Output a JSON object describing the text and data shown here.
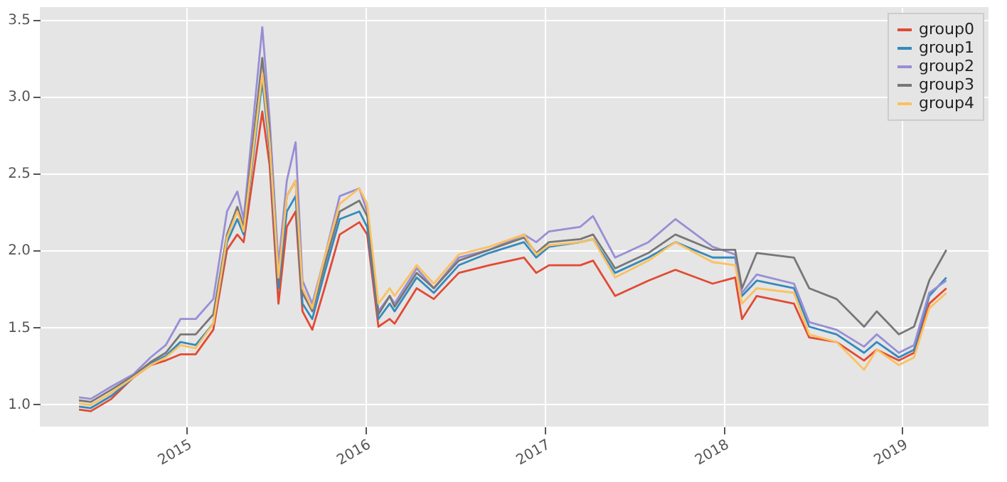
{
  "chart_data": {
    "type": "line",
    "x": [
      "2014-05-27",
      "2014-06-20",
      "2014-08-01",
      "2014-09-15",
      "2014-10-20",
      "2014-11-20",
      "2014-12-20",
      "2015-01-20",
      "2015-02-25",
      "2015-03-25",
      "2015-04-15",
      "2015-04-28",
      "2015-06-05",
      "2015-06-20",
      "2015-07-08",
      "2015-07-25",
      "2015-08-12",
      "2015-08-26",
      "2015-09-15",
      "2015-10-10",
      "2015-11-10",
      "2015-12-20",
      "2016-01-05",
      "2016-01-28",
      "2016-02-20",
      "2016-03-01",
      "2016-04-15",
      "2016-05-20",
      "2016-07-10",
      "2016-09-10",
      "2016-11-20",
      "2016-12-15",
      "2017-01-10",
      "2017-03-15",
      "2017-04-10",
      "2017-05-25",
      "2017-08-01",
      "2017-09-25",
      "2017-12-10",
      "2018-01-25",
      "2018-02-08",
      "2018-03-10",
      "2018-05-25",
      "2018-06-25",
      "2018-08-20",
      "2018-10-15",
      "2018-11-10",
      "2018-12-25",
      "2019-01-25",
      "2019-02-25",
      "2019-04-01"
    ],
    "series": [
      {
        "name": "group0",
        "color": "#e24a33",
        "values": [
          0.96,
          0.95,
          1.03,
          1.17,
          1.25,
          1.28,
          1.32,
          1.32,
          1.48,
          2.0,
          2.1,
          2.05,
          2.9,
          2.55,
          1.65,
          2.15,
          2.25,
          1.6,
          1.48,
          1.75,
          2.1,
          2.18,
          2.1,
          1.5,
          1.55,
          1.52,
          1.75,
          1.68,
          1.85,
          1.9,
          1.95,
          1.85,
          1.9,
          1.9,
          1.93,
          1.7,
          1.8,
          1.87,
          1.78,
          1.82,
          1.55,
          1.7,
          1.65,
          1.43,
          1.4,
          1.28,
          1.35,
          1.28,
          1.33,
          1.65,
          1.75
        ]
      },
      {
        "name": "group1",
        "color": "#348abd",
        "values": [
          0.98,
          0.97,
          1.05,
          1.17,
          1.26,
          1.31,
          1.4,
          1.38,
          1.52,
          2.05,
          2.2,
          2.1,
          3.1,
          2.65,
          1.75,
          2.25,
          2.35,
          1.65,
          1.55,
          1.85,
          2.2,
          2.25,
          2.15,
          1.55,
          1.65,
          1.6,
          1.82,
          1.72,
          1.9,
          1.98,
          2.05,
          1.95,
          2.02,
          2.05,
          2.07,
          1.85,
          1.95,
          2.05,
          1.95,
          1.95,
          1.7,
          1.8,
          1.75,
          1.5,
          1.45,
          1.33,
          1.4,
          1.3,
          1.35,
          1.7,
          1.82
        ]
      },
      {
        "name": "group2",
        "color": "#988ed5",
        "values": [
          1.04,
          1.03,
          1.11,
          1.19,
          1.3,
          1.38,
          1.55,
          1.55,
          1.68,
          2.25,
          2.38,
          2.2,
          3.45,
          2.85,
          1.9,
          2.45,
          2.7,
          1.8,
          1.65,
          1.95,
          2.35,
          2.4,
          2.25,
          1.6,
          1.7,
          1.65,
          1.88,
          1.75,
          1.95,
          2.0,
          2.1,
          2.05,
          2.12,
          2.15,
          2.22,
          1.95,
          2.05,
          2.2,
          2.02,
          1.97,
          1.72,
          1.84,
          1.78,
          1.53,
          1.48,
          1.37,
          1.45,
          1.33,
          1.38,
          1.72,
          1.8
        ]
      },
      {
        "name": "group3",
        "color": "#777777",
        "values": [
          1.02,
          1.01,
          1.09,
          1.18,
          1.27,
          1.33,
          1.45,
          1.45,
          1.58,
          2.1,
          2.28,
          2.15,
          3.25,
          2.75,
          1.8,
          2.35,
          2.45,
          1.72,
          1.6,
          1.9,
          2.25,
          2.32,
          2.22,
          1.58,
          1.7,
          1.63,
          1.85,
          1.75,
          1.93,
          2.0,
          2.08,
          1.98,
          2.05,
          2.07,
          2.1,
          1.88,
          1.98,
          2.1,
          2.0,
          2.0,
          1.75,
          1.98,
          1.95,
          1.75,
          1.68,
          1.5,
          1.6,
          1.45,
          1.5,
          1.8,
          2.0
        ]
      },
      {
        "name": "group4",
        "color": "#fbc15e",
        "values": [
          1.0,
          0.99,
          1.07,
          1.17,
          1.25,
          1.3,
          1.38,
          1.36,
          1.52,
          2.08,
          2.25,
          2.12,
          3.15,
          2.7,
          1.82,
          2.35,
          2.45,
          1.75,
          1.62,
          1.95,
          2.3,
          2.4,
          2.3,
          1.65,
          1.75,
          1.7,
          1.9,
          1.78,
          1.97,
          2.02,
          2.1,
          1.97,
          2.03,
          2.05,
          2.07,
          1.82,
          1.93,
          2.05,
          1.92,
          1.9,
          1.65,
          1.75,
          1.72,
          1.45,
          1.4,
          1.22,
          1.35,
          1.25,
          1.3,
          1.62,
          1.72
        ]
      }
    ],
    "xlim": [
      "2014-03-08",
      "2019-06-26"
    ],
    "xticks": [
      {
        "value": "2015-01-01",
        "label": "2015"
      },
      {
        "value": "2016-01-01",
        "label": "2016"
      },
      {
        "value": "2017-01-01",
        "label": "2017"
      },
      {
        "value": "2018-01-01",
        "label": "2018"
      },
      {
        "value": "2019-01-01",
        "label": "2019"
      }
    ],
    "ylim": [
      0.85,
      3.58
    ],
    "yticks": [
      {
        "value": 1,
        "label": "1.0"
      },
      {
        "value": 1.5,
        "label": "1.5"
      },
      {
        "value": 2,
        "label": "2.0"
      },
      {
        "value": 2.5,
        "label": "2.5"
      },
      {
        "value": 3,
        "label": "3.0"
      },
      {
        "value": 3.5,
        "label": "3.5"
      }
    ],
    "grid": true,
    "legend": "top right",
    "line_style": "solid"
  }
}
